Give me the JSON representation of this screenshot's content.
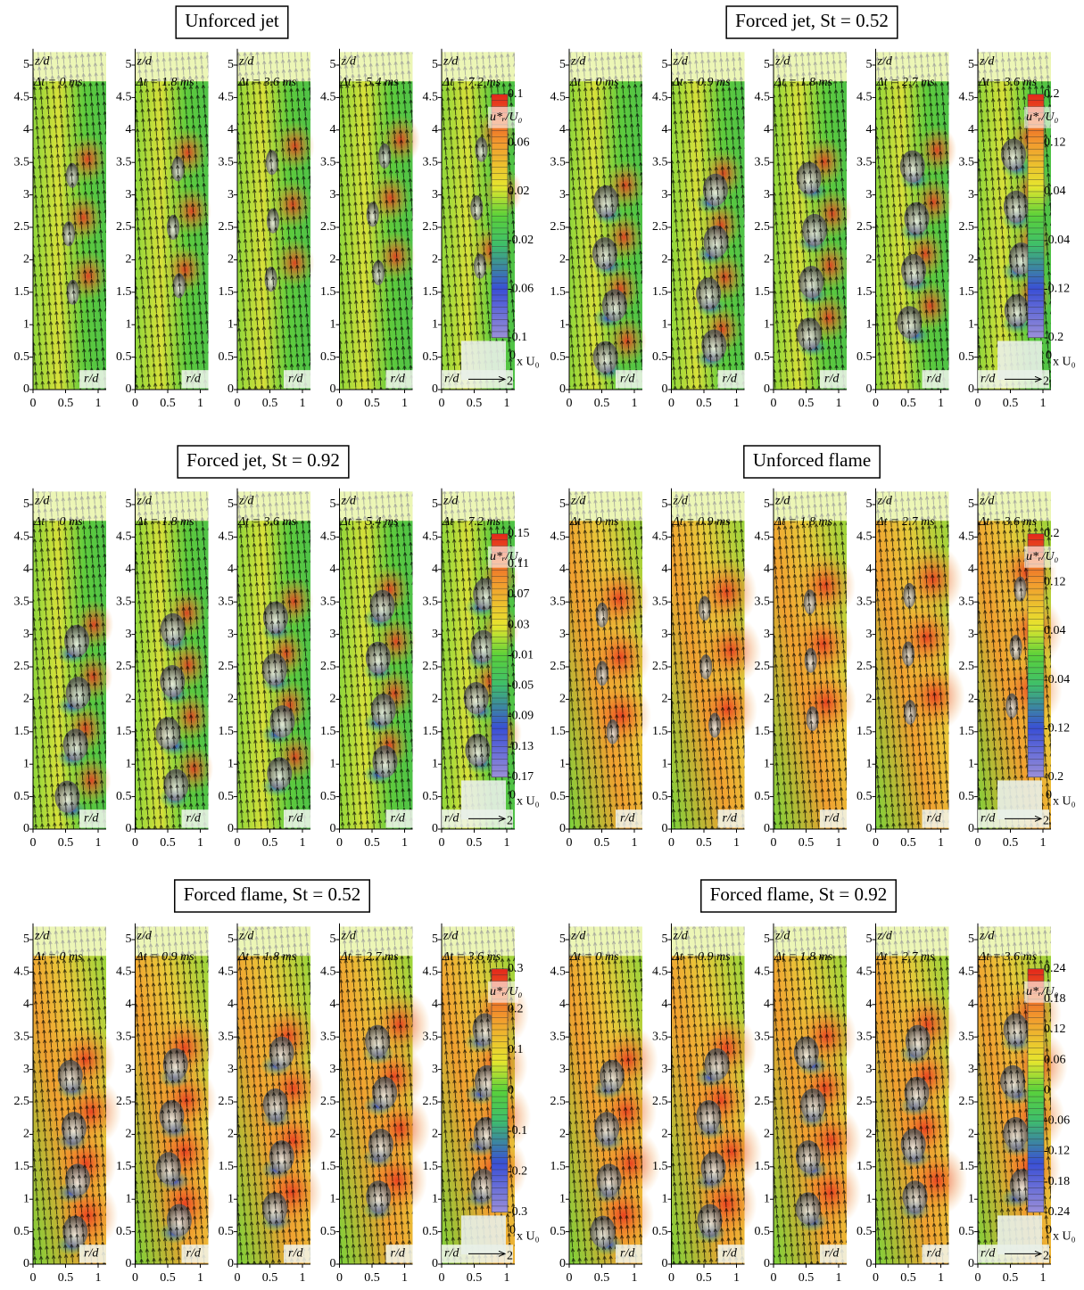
{
  "axes": {
    "z_label": "z/d",
    "r_label": "r/d",
    "z_ticks": [
      "0",
      "0.5",
      "1",
      "1.5",
      "2",
      "2.5",
      "3",
      "3.5",
      "4",
      "4.5",
      "5"
    ],
    "r_ticks": [
      "0",
      "0.5",
      "1"
    ]
  },
  "reference_vector": {
    "start": "0",
    "end": "2",
    "unit": "x U₀"
  },
  "groups": [
    {
      "title": "Unforced jet",
      "times": [
        "Δt = 0 ms",
        "Δt = 1.8 ms",
        "Δt = 3.6 ms",
        "Δt = 5.4 ms",
        "Δt = 7.2 ms"
      ],
      "colorbar": {
        "label": "u*ᵣ/U₀",
        "ticks": [
          "0.1",
          "0.06",
          "0.02",
          "-0.02",
          "-0.06",
          "-0.1"
        ]
      }
    },
    {
      "title": "Forced jet, St = 0.52",
      "times": [
        "Δt = 0 ms",
        "Δt = 0.9 ms",
        "Δt = 1.8 ms",
        "Δt = 2.7 ms",
        "Δt = 3.6 ms"
      ],
      "colorbar": {
        "label": "u*ᵣ/U₀",
        "ticks": [
          "0.2",
          "0.12",
          "0.04",
          "-0.04",
          "-0.12",
          "-0.2"
        ]
      }
    },
    {
      "title": "Forced jet, St = 0.92",
      "times": [
        "Δt = 0 ms",
        "Δt = 1.8 ms",
        "Δt = 3.6 ms",
        "Δt = 5.4 ms",
        "Δt = 7.2 ms"
      ],
      "colorbar": {
        "label": "u*ᵣ/U₀",
        "ticks": [
          "0.15",
          "0.11",
          "0.07",
          "0.03",
          "-0.01",
          "-0.05",
          "-0.09",
          "-0.13",
          "-0.17"
        ]
      }
    },
    {
      "title": "Unforced flame",
      "times": [
        "Δt = 0 ms",
        "Δt = 0.9 ms",
        "Δt = 1.8 ms",
        "Δt = 2.7 ms",
        "Δt = 3.6 ms"
      ],
      "colorbar": {
        "label": "u*ᵣ/U₀",
        "ticks": [
          "0.2",
          "0.12",
          "0.04",
          "-0.04",
          "-0.12",
          "-0.2"
        ]
      }
    },
    {
      "title": "Forced flame, St = 0.52",
      "times": [
        "Δt = 0 ms",
        "Δt = 0.9 ms",
        "Δt = 1.8 ms",
        "Δt = 2.7 ms",
        "Δt = 3.6 ms"
      ],
      "colorbar": {
        "label": "u*ᵣ/U₀",
        "ticks": [
          "0.3",
          "0.2",
          "0.1",
          "0",
          "-0.1",
          "-0.2",
          "-0.3"
        ]
      }
    },
    {
      "title": "Forced flame, St = 0.92",
      "times": [
        "Δt = 0 ms",
        "Δt = 0.9 ms",
        "Δt = 1.8 ms",
        "Δt = 2.7 ms",
        "Δt = 3.6 ms"
      ],
      "colorbar": {
        "label": "u*ᵣ/U₀",
        "ticks": [
          "0.24",
          "0.18",
          "0.12",
          "0.06",
          "0",
          "-0.06",
          "-0.12",
          "-0.18",
          "-0.24"
        ]
      }
    }
  ]
}
